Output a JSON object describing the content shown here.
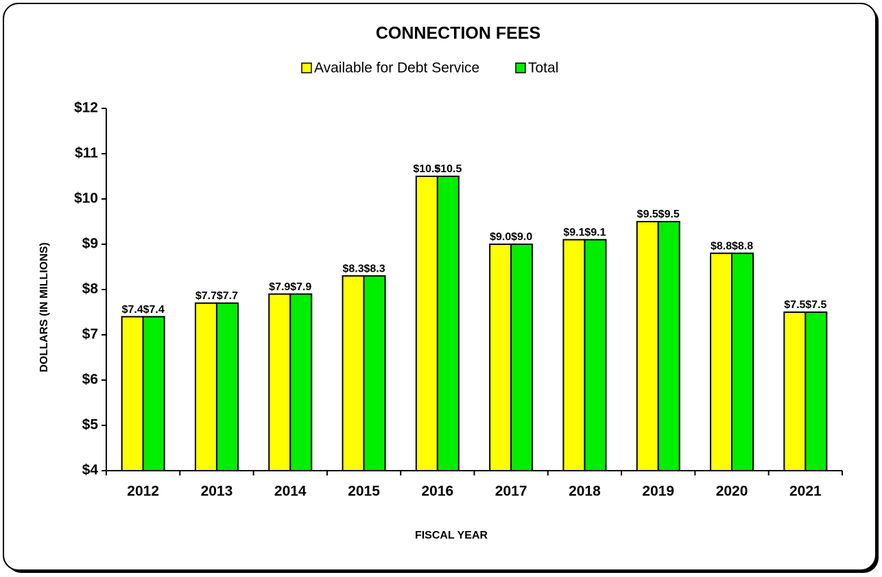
{
  "chart_data": {
    "type": "bar",
    "title": "CONNECTION FEES",
    "xlabel": "FISCAL YEAR",
    "ylabel": "DOLLARS (IN MILLIONS)",
    "categories": [
      "2012",
      "2013",
      "2014",
      "2015",
      "2016",
      "2017",
      "2018",
      "2019",
      "2020",
      "2021"
    ],
    "series": [
      {
        "name": "Available for Debt Service",
        "color": "#ffff00",
        "values": [
          7.4,
          7.7,
          7.9,
          8.3,
          10.5,
          9.0,
          9.1,
          9.5,
          8.8,
          7.5
        ],
        "value_labels": [
          "$7.4",
          "$7.7",
          "$7.9",
          "$8.3",
          "$10.5",
          "$9.0",
          "$9.1",
          "$9.5",
          "$8.8",
          "$7.5"
        ]
      },
      {
        "name": "Total",
        "color": "#00ee00",
        "values": [
          7.4,
          7.7,
          7.9,
          8.3,
          10.5,
          9.0,
          9.1,
          9.5,
          8.8,
          7.5
        ],
        "value_labels": [
          "$7.4",
          "$7.7",
          "$7.9",
          "$8.3",
          "$10.5",
          "$9.0",
          "$9.1",
          "$9.5",
          "$8.8",
          "$7.5"
        ]
      }
    ],
    "ylim": [
      4,
      12
    ],
    "yticks": [
      {
        "value": 4,
        "label": "$4"
      },
      {
        "value": 5,
        "label": "$5"
      },
      {
        "value": 6,
        "label": "$6"
      },
      {
        "value": 7,
        "label": "$7"
      },
      {
        "value": 8,
        "label": "$8"
      },
      {
        "value": 9,
        "label": "$9"
      },
      {
        "value": 10,
        "label": "$10"
      },
      {
        "value": 11,
        "label": "$11"
      },
      {
        "value": 12,
        "label": "$12"
      }
    ],
    "grid": false,
    "legend": "top"
  }
}
